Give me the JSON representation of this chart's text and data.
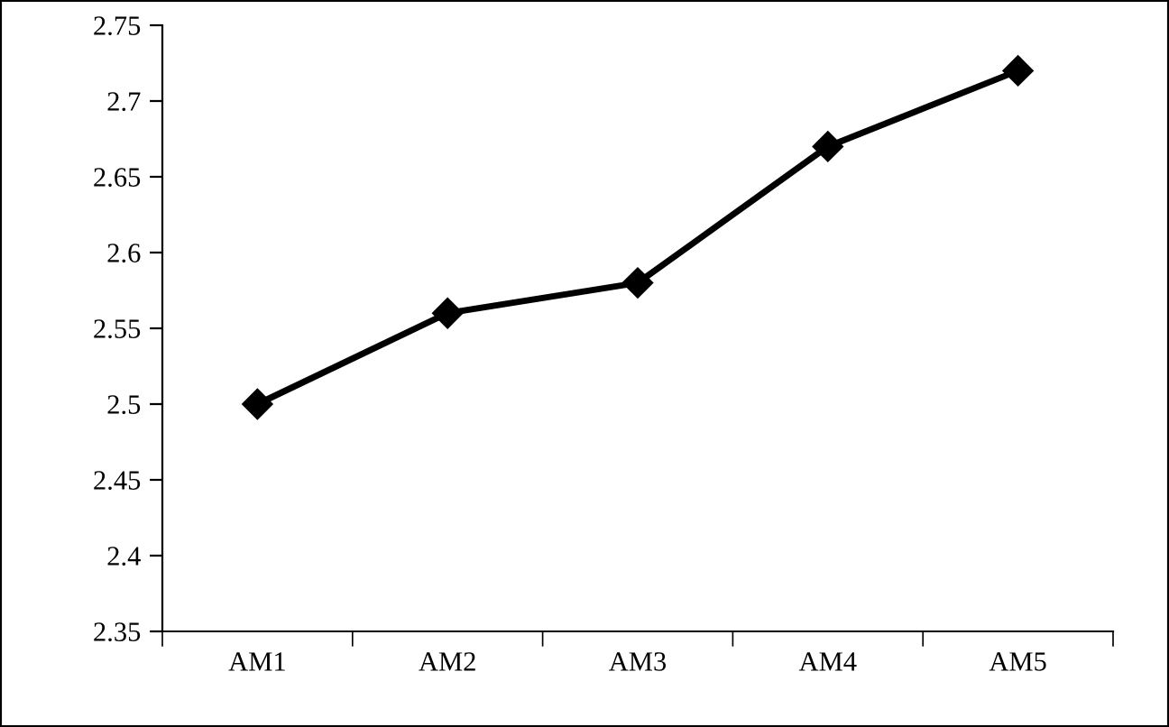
{
  "chart_data": {
    "type": "line",
    "categories": [
      "AM1",
      "AM2",
      "AM3",
      "AM4",
      "AM5"
    ],
    "series": [
      {
        "color": "#000000",
        "values": [
          2.5,
          2.56,
          2.58,
          2.67,
          2.72
        ]
      }
    ],
    "ylim": [
      2.35,
      2.75
    ],
    "yticks": [
      2.35,
      2.4,
      2.45,
      2.5,
      2.55,
      2.6,
      2.65,
      2.7,
      2.75
    ],
    "marker": "diamond",
    "line_style": "solid",
    "grid": false,
    "legend": false
  }
}
